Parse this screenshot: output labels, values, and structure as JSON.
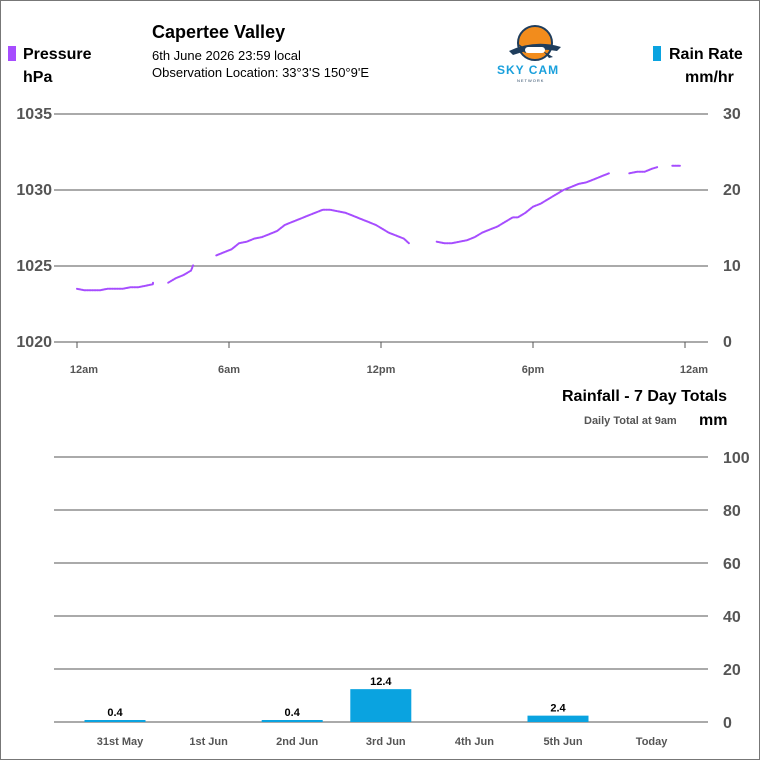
{
  "header": {
    "station": "Capertee Valley",
    "datetime": "6th June 2026  23:59 local",
    "location": "Observation Location: 33°3'S 150°9'E"
  },
  "logo": {
    "name": "SKY CAM",
    "tagline": "NETWORK",
    "icon": "airplane-sun-logo"
  },
  "legend": {
    "pressure_label": "Pressure",
    "pressure_unit": "hPa",
    "rain_label": "Rain Rate",
    "rain_unit": "mm/hr"
  },
  "colors": {
    "pressure": "#a64dff",
    "rain": "#0aa3e0",
    "grid": "#555555",
    "tick": "#555555"
  },
  "chart_data": [
    {
      "type": "line",
      "y_axis_left": {
        "label": "hPa",
        "ticks": [
          1035,
          1030,
          1025,
          1020
        ],
        "ylim": [
          1020,
          1035
        ]
      },
      "y_axis_right": {
        "label": "mm/hr",
        "ticks": [
          30,
          20,
          10,
          0
        ],
        "ylim": [
          0,
          30
        ]
      },
      "x_ticks": [
        "12am",
        "6am",
        "12pm",
        "6pm",
        "12am"
      ],
      "x_range_hours": [
        0,
        24
      ],
      "series": [
        {
          "name": "Pressure",
          "segments": [
            [
              [
                0.0,
                1023.5
              ],
              [
                0.5,
                1023.4
              ],
              [
                1.0,
                1023.4
              ],
              [
                1.5,
                1023.5
              ],
              [
                2.0,
                1023.5
              ],
              [
                2.5,
                1023.6
              ],
              [
                3.0,
                1023.7
              ],
              [
                3.5,
                1023.9
              ],
              [
                3.8,
                1023.9
              ]
            ],
            [
              [
                3.6,
                1023.8
              ],
              [
                3.8,
                1023.9
              ]
            ],
            [
              [
                3.6,
                1023.7
              ],
              [
                3.7,
                1023.8
              ]
            ],
            [
              [
                4.0,
                1023.9
              ]
            ],
            [
              [
                3.6,
                1023.8
              ]
            ],
            [
              [
                3.6,
                1023.9
              ]
            ],
            [
              [
                4.0,
                1023.9
              ]
            ]
          ]
        }
      ]
    },
    {
      "type": "bar",
      "title": "Rainfall - 7 Day Totals",
      "subtitle": "Daily Total at 9am",
      "unit": "mm",
      "categories": [
        "31st May",
        "1st Jun",
        "2nd Jun",
        "3rd Jun",
        "4th Jun",
        "5th Jun",
        "Today"
      ],
      "values": [
        0.4,
        0,
        0.4,
        12.4,
        0,
        2.4,
        0
      ],
      "value_labels": [
        "0.4",
        "",
        "0.4",
        "12.4",
        "",
        "2.4",
        ""
      ],
      "y_ticks": [
        100,
        80,
        60,
        40,
        20,
        0
      ],
      "ylim": [
        0,
        100
      ]
    }
  ],
  "pressure_trace": [
    [
      0.0,
      1023.5
    ],
    [
      0.3,
      1023.4
    ],
    [
      0.6,
      1023.4
    ],
    [
      0.9,
      1023.4
    ],
    [
      1.2,
      1023.5
    ],
    [
      1.5,
      1023.5
    ],
    [
      1.8,
      1023.5
    ],
    [
      2.1,
      1023.6
    ],
    [
      2.4,
      1023.6
    ],
    [
      2.7,
      1023.7
    ],
    [
      3.0,
      1023.8
    ],
    [
      3.0,
      1023.9
    ],
    [
      3.6,
      1023.9
    ],
    [
      3.9,
      1024.2
    ],
    [
      4.2,
      1024.4
    ],
    [
      4.5,
      1024.7
    ],
    [
      4.6,
      1025.1
    ],
    [
      5.5,
      1025.7
    ],
    [
      5.8,
      1025.9
    ],
    [
      6.1,
      1026.1
    ],
    [
      6.4,
      1026.5
    ],
    [
      6.7,
      1026.6
    ],
    [
      7.0,
      1026.8
    ],
    [
      7.3,
      1026.9
    ],
    [
      7.6,
      1027.1
    ],
    [
      7.9,
      1027.3
    ],
    [
      8.2,
      1027.7
    ],
    [
      8.5,
      1027.9
    ],
    [
      8.8,
      1028.1
    ],
    [
      9.1,
      1028.3
    ],
    [
      9.4,
      1028.5
    ],
    [
      9.7,
      1028.7
    ],
    [
      10.0,
      1028.7
    ],
    [
      10.3,
      1028.6
    ],
    [
      10.6,
      1028.5
    ],
    [
      10.9,
      1028.3
    ],
    [
      11.2,
      1028.1
    ],
    [
      11.5,
      1027.9
    ],
    [
      11.8,
      1027.7
    ],
    [
      12.0,
      1027.5
    ],
    [
      12.3,
      1027.2
    ],
    [
      12.6,
      1027.0
    ],
    [
      12.9,
      1026.8
    ],
    [
      13.1,
      1026.5
    ],
    [
      14.2,
      1026.6
    ],
    [
      14.5,
      1026.5
    ],
    [
      14.8,
      1026.5
    ],
    [
      15.1,
      1026.6
    ],
    [
      15.4,
      1026.7
    ],
    [
      15.7,
      1026.9
    ],
    [
      16.0,
      1027.2
    ],
    [
      16.3,
      1027.4
    ],
    [
      16.6,
      1027.6
    ],
    [
      16.9,
      1027.9
    ],
    [
      17.2,
      1028.2
    ],
    [
      17.4,
      1028.2
    ],
    [
      17.7,
      1028.5
    ],
    [
      18.0,
      1028.9
    ],
    [
      18.3,
      1029.1
    ],
    [
      18.6,
      1029.4
    ],
    [
      18.9,
      1029.7
    ],
    [
      19.2,
      1030.0
    ],
    [
      19.5,
      1030.2
    ],
    [
      19.8,
      1030.4
    ],
    [
      20.1,
      1030.5
    ],
    [
      20.4,
      1030.7
    ],
    [
      20.7,
      1030.9
    ],
    [
      21.0,
      1031.1
    ],
    [
      21.8,
      1031.1
    ],
    [
      22.1,
      1031.2
    ],
    [
      22.4,
      1031.2
    ],
    [
      22.7,
      1031.4
    ],
    [
      22.9,
      1031.5
    ],
    [
      23.5,
      1031.6
    ],
    [
      23.8,
      1031.6
    ]
  ]
}
